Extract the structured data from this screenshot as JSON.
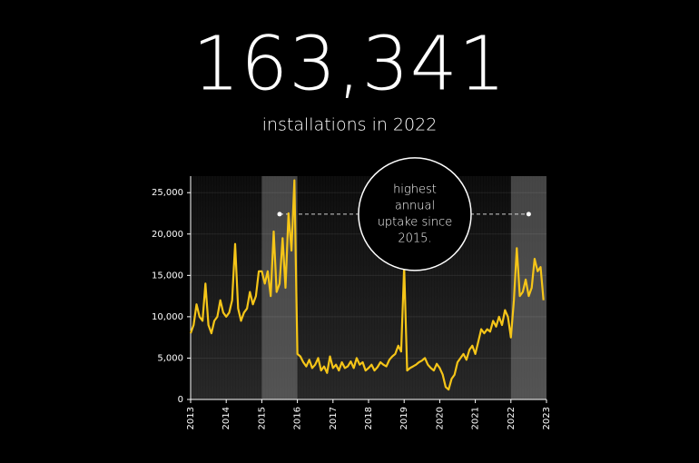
{
  "chart_data": {
    "type": "line",
    "title": "163,341",
    "subtitle": "installations in 2022",
    "x": [
      2013,
      2013.083,
      2013.167,
      2013.25,
      2013.333,
      2013.417,
      2013.5,
      2013.583,
      2013.667,
      2013.75,
      2013.833,
      2013.917,
      2014,
      2014.083,
      2014.167,
      2014.25,
      2014.333,
      2014.417,
      2014.5,
      2014.583,
      2014.667,
      2014.75,
      2014.833,
      2014.917,
      2015,
      2015.083,
      2015.167,
      2015.25,
      2015.333,
      2015.417,
      2015.5,
      2015.583,
      2015.667,
      2015.75,
      2015.833,
      2015.917,
      2016,
      2016.083,
      2016.167,
      2016.25,
      2016.333,
      2016.417,
      2016.5,
      2016.583,
      2016.667,
      2016.75,
      2016.833,
      2016.917,
      2017,
      2017.083,
      2017.167,
      2017.25,
      2017.333,
      2017.417,
      2017.5,
      2017.583,
      2017.667,
      2017.75,
      2017.833,
      2017.917,
      2018,
      2018.083,
      2018.167,
      2018.25,
      2018.333,
      2018.417,
      2018.5,
      2018.583,
      2018.667,
      2018.75,
      2018.833,
      2018.917,
      2019,
      2019.083,
      2019.167,
      2019.25,
      2019.333,
      2019.417,
      2019.5,
      2019.583,
      2019.667,
      2019.75,
      2019.833,
      2019.917,
      2020,
      2020.083,
      2020.167,
      2020.25,
      2020.333,
      2020.417,
      2020.5,
      2020.583,
      2020.667,
      2020.75,
      2020.833,
      2020.917,
      2021,
      2021.083,
      2021.167,
      2021.25,
      2021.333,
      2021.417,
      2021.5,
      2021.583,
      2021.667,
      2021.75,
      2021.833,
      2021.917,
      2022,
      2022.083,
      2022.167,
      2022.25,
      2022.333,
      2022.417,
      2022.5,
      2022.583,
      2022.667,
      2022.75,
      2022.833,
      2022.917
    ],
    "values": [
      8000,
      9000,
      11500,
      10000,
      9500,
      14000,
      9000,
      8000,
      9500,
      10000,
      12000,
      10500,
      10000,
      10500,
      12000,
      18800,
      11000,
      9500,
      10500,
      11000,
      13000,
      11500,
      12500,
      15500,
      15500,
      14000,
      15500,
      12500,
      20300,
      13000,
      14000,
      19500,
      13500,
      22500,
      18000,
      26500,
      5500,
      5200,
      4500,
      4000,
      4800,
      3800,
      4200,
      5000,
      3500,
      4000,
      3200,
      5200,
      3800,
      4200,
      3500,
      4500,
      3800,
      4000,
      4600,
      3800,
      5000,
      4200,
      4500,
      3500,
      3800,
      4200,
      3500,
      3900,
      4500,
      4200,
      4000,
      4800,
      5200,
      5500,
      6500,
      5800,
      16000,
      3500,
      3800,
      4000,
      4200,
      4500,
      4700,
      5000,
      4200,
      3800,
      3500,
      4300,
      3800,
      3000,
      1500,
      1200,
      2500,
      3000,
      4500,
      5000,
      5500,
      4800,
      6000,
      6500,
      5500,
      7000,
      8500,
      8000,
      8500,
      8200,
      9500,
      8800,
      10000,
      9000,
      10800,
      10000,
      7500,
      12000,
      18300,
      12500,
      13000,
      14500,
      12500,
      13500,
      17000,
      15500,
      16000,
      12000
    ],
    "color": "#f5c518",
    "xlim": [
      2013,
      2023
    ],
    "xticks": [
      2013,
      2014,
      2015,
      2016,
      2017,
      2018,
      2019,
      2020,
      2021,
      2022,
      2023
    ],
    "ylim": [
      0,
      27000
    ],
    "yticks": [
      0,
      {
        "value": 5000,
        "label": "5,000"
      },
      {
        "value": 10000,
        "label": "10,000"
      },
      {
        "value": 15000,
        "label": "15,000"
      },
      {
        "value": 20000,
        "label": "20,000"
      },
      {
        "value": 25000,
        "label": "25,000"
      }
    ],
    "highlights": [
      [
        2015,
        2016
      ],
      [
        2022,
        2023
      ]
    ],
    "reference_line": {
      "y": 22400,
      "x": [
        2015.5,
        2022.5
      ]
    },
    "annotation": {
      "x": 2019.3,
      "y": 22400,
      "lines": [
        "highest",
        "annual",
        "uptake since",
        "2015."
      ]
    },
    "grid": true
  }
}
